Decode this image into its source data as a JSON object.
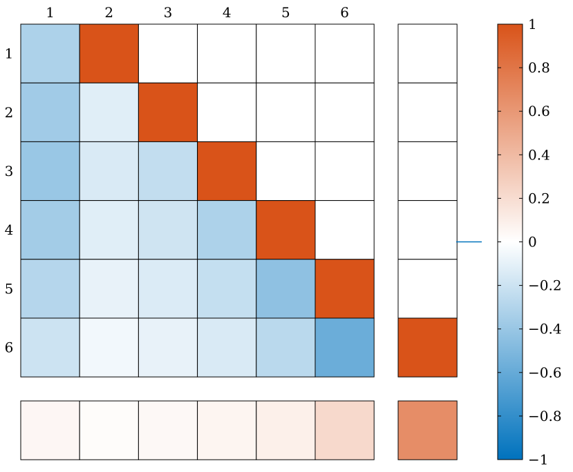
{
  "chart_data": {
    "type": "heatmap",
    "title": "",
    "xlabel": "",
    "ylabel": "",
    "col_labels": [
      "1",
      "2",
      "3",
      "4",
      "5",
      "6"
    ],
    "row_labels": [
      "1",
      "2",
      "3",
      "4",
      "5",
      "6"
    ],
    "matrix": [
      [
        -0.32,
        1,
        0,
        0,
        0,
        0
      ],
      [
        -0.37,
        -0.12,
        1,
        0,
        0,
        0
      ],
      [
        -0.4,
        -0.15,
        -0.24,
        1,
        0,
        0
      ],
      [
        -0.36,
        -0.12,
        -0.19,
        -0.32,
        1,
        0
      ],
      [
        -0.29,
        -0.09,
        -0.14,
        -0.23,
        -0.44,
        1
      ],
      [
        -0.2,
        -0.05,
        -0.09,
        -0.15,
        -0.27,
        -0.58
      ]
    ],
    "side_column": [
      0,
      0,
      0,
      0,
      0,
      1
    ],
    "bottom_row": [
      0.05,
      0.02,
      0.04,
      0.06,
      0.09,
      0.22
    ],
    "corner_value": 0.66,
    "colorbar": {
      "range": [
        -1,
        1
      ],
      "ticks": [
        1,
        0.8,
        0.6,
        0.4,
        0.2,
        0,
        -0.2,
        -0.4,
        -0.6,
        -0.8,
        -1
      ],
      "tick_labels": [
        "1",
        "0.8",
        "0.6",
        "0.4",
        "0.2",
        "0",
        "−0.2",
        "−0.4",
        "−0.6",
        "−0.8",
        "−1"
      ],
      "colors": {
        "negative": "#0072bd",
        "zero": "#ffffff",
        "positive": "#d95319"
      },
      "marker_value": 0,
      "marker_color": "#0072bd"
    }
  }
}
